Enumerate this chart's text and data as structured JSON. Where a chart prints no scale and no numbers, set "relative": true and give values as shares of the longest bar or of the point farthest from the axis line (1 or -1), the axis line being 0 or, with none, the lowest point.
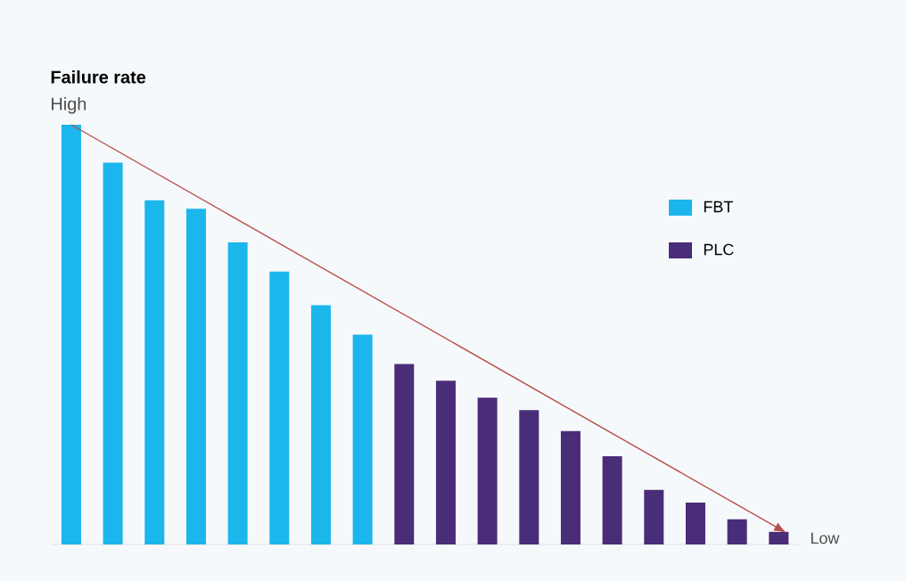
{
  "chart_data": {
    "type": "bar",
    "relative": true,
    "ylabel": "Failure rate",
    "categories": [
      null,
      null,
      null,
      null,
      null,
      null,
      null,
      null,
      null,
      null,
      null,
      null,
      null,
      null,
      null,
      null,
      null,
      null
    ],
    "values": [
      1,
      0.91,
      0.82,
      0.8,
      0.72,
      0.65,
      0.57,
      0.5,
      0.43,
      0.39,
      0.35,
      0.32,
      0.27,
      0.21,
      0.13,
      0.1,
      0.06,
      0.03
    ],
    "colors": [
      "#1bb6ec",
      "#1bb6ec",
      "#1bb6ec",
      "#1bb6ec",
      "#1bb6ec",
      "#1bb6ec",
      "#1bb6ec",
      "#1bb6ec",
      "#4a2d78",
      "#4a2d78",
      "#4a2d78",
      "#4a2d78",
      "#4a2d78",
      "#4a2d78",
      "#4a2d78",
      "#4a2d78",
      "#4a2d78",
      "#4a2d78"
    ],
    "annotations": [
      "High",
      "Low",
      "FBT",
      "PLC"
    ]
  }
}
